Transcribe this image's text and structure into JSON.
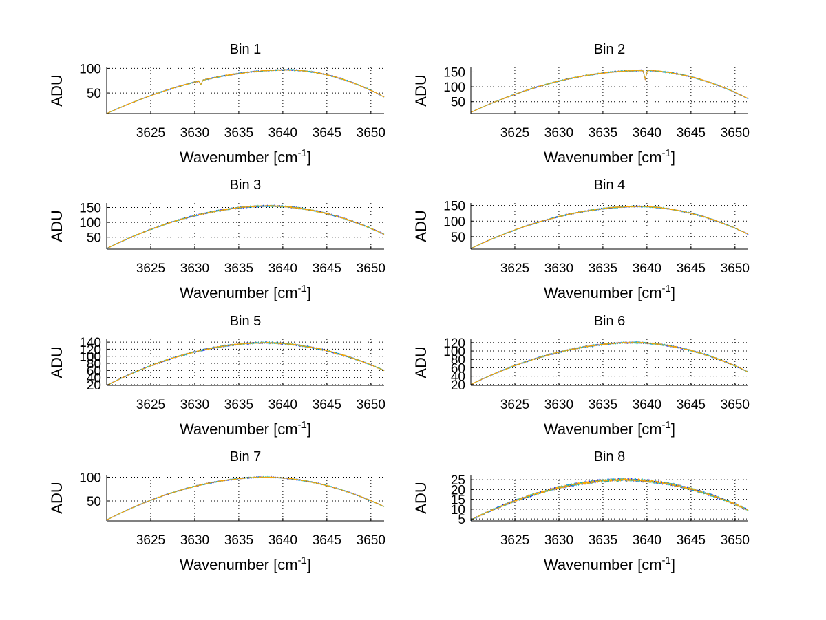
{
  "figure": {
    "background": "#ffffff"
  },
  "colors": {
    "primary": "#0000ff",
    "secondary": "#00bfbf",
    "overlay": "#ffa500",
    "grid": "#000000"
  },
  "chart_data": [
    {
      "type": "line",
      "title": "Bin 1",
      "xlabel": "Wavenumber [cm",
      "xlabel_sup": "-1",
      "xlabel_suffix": "]",
      "ylabel": "ADU",
      "xlim": [
        3620,
        3651.5
      ],
      "ylim": [
        8,
        102
      ],
      "xticks": [
        3625,
        3630,
        3635,
        3640,
        3645,
        3650
      ],
      "yticks": [
        50,
        100
      ],
      "ytick_labels": [
        "50",
        "100"
      ],
      "x_start": 3620,
      "x_end": 3651.5,
      "series": [
        {
          "name": "spectrum",
          "color": "#ffa500",
          "shape": {
            "peak": 97,
            "center": 3640.5,
            "edge_left": 8,
            "edge_right": 42
          },
          "noise": 1.2
        }
      ],
      "dips": [
        {
          "x": 3630.7,
          "depth": 8
        }
      ]
    },
    {
      "type": "line",
      "title": "Bin 2",
      "xlabel": "Wavenumber [cm",
      "xlabel_sup": "-1",
      "xlabel_suffix": "]",
      "ylabel": "ADU",
      "xlim": [
        3620,
        3651.5
      ],
      "ylim": [
        10,
        165
      ],
      "xticks": [
        3625,
        3630,
        3635,
        3640,
        3645,
        3650
      ],
      "yticks": [
        50,
        100,
        150
      ],
      "ytick_labels": [
        "50",
        "100",
        "150"
      ],
      "x_start": 3620,
      "x_end": 3651.5,
      "series": [
        {
          "name": "spectrum",
          "color": "#ffa500",
          "shape": {
            "peak": 155,
            "center": 3639.5,
            "edge_left": 14,
            "edge_right": 60
          },
          "noise": 2
        }
      ],
      "dips": [
        {
          "x": 3639.8,
          "depth": 30
        }
      ]
    },
    {
      "type": "line",
      "title": "Bin 3",
      "xlabel": "Wavenumber [cm",
      "xlabel_sup": "-1",
      "xlabel_suffix": "]",
      "ylabel": "ADU",
      "xlim": [
        3620,
        3651.5
      ],
      "ylim": [
        10,
        165
      ],
      "xticks": [
        3625,
        3630,
        3635,
        3640,
        3645,
        3650
      ],
      "yticks": [
        50,
        100,
        150
      ],
      "ytick_labels": [
        "50",
        "100",
        "150"
      ],
      "x_start": 3620,
      "x_end": 3651.5,
      "series": [
        {
          "name": "spectrum",
          "color": "#ffa500",
          "shape": {
            "peak": 155,
            "center": 3638.5,
            "edge_left": 12,
            "edge_right": 60
          },
          "noise": 2.5
        }
      ],
      "dips": []
    },
    {
      "type": "line",
      "title": "Bin 4",
      "xlabel": "Wavenumber [cm",
      "xlabel_sup": "-1",
      "xlabel_suffix": "]",
      "ylabel": "ADU",
      "xlim": [
        3620,
        3651.5
      ],
      "ylim": [
        10,
        158
      ],
      "xticks": [
        3625,
        3630,
        3635,
        3640,
        3645,
        3650
      ],
      "yticks": [
        50,
        100,
        150
      ],
      "ytick_labels": [
        "50",
        "100",
        "150"
      ],
      "x_start": 3620,
      "x_end": 3651.5,
      "series": [
        {
          "name": "spectrum",
          "color": "#ffa500",
          "shape": {
            "peak": 147,
            "center": 3639,
            "edge_left": 12,
            "edge_right": 58
          },
          "noise": 2
        }
      ],
      "dips": []
    },
    {
      "type": "line",
      "title": "Bin 5",
      "xlabel": "Wavenumber [cm",
      "xlabel_sup": "-1",
      "xlabel_suffix": "]",
      "ylabel": "ADU",
      "xlim": [
        3620,
        3651.5
      ],
      "ylim": [
        18,
        148
      ],
      "xticks": [
        3625,
        3630,
        3635,
        3640,
        3645,
        3650
      ],
      "yticks": [
        20,
        40,
        60,
        80,
        100,
        120,
        140
      ],
      "ytick_labels": [
        "20",
        "40",
        "60",
        "80",
        "100",
        "120",
        "140"
      ],
      "x_start": 3620,
      "x_end": 3651.5,
      "series": [
        {
          "name": "spectrum",
          "color": "#ffa500",
          "shape": {
            "peak": 138,
            "center": 3638,
            "edge_left": 18,
            "edge_right": 60
          },
          "noise": 2.2
        }
      ],
      "dips": []
    },
    {
      "type": "line",
      "title": "Bin 6",
      "xlabel": "Wavenumber [cm",
      "xlabel_sup": "-1",
      "xlabel_suffix": "]",
      "ylabel": "ADU",
      "xlim": [
        3620,
        3651.5
      ],
      "ylim": [
        18,
        128
      ],
      "xticks": [
        3625,
        3630,
        3635,
        3640,
        3645,
        3650
      ],
      "yticks": [
        20,
        40,
        60,
        80,
        100,
        120
      ],
      "ytick_labels": [
        "20",
        "40",
        "60",
        "80",
        "100",
        "120"
      ],
      "x_start": 3620,
      "x_end": 3651.5,
      "series": [
        {
          "name": "spectrum",
          "color": "#ffa500",
          "shape": {
            "peak": 120,
            "center": 3638.5,
            "edge_left": 20,
            "edge_right": 50
          },
          "noise": 1.8
        }
      ],
      "dips": []
    },
    {
      "type": "line",
      "title": "Bin 7",
      "xlabel": "Wavenumber [cm",
      "xlabel_sup": "-1",
      "xlabel_suffix": "]",
      "ylabel": "ADU",
      "xlim": [
        3620,
        3651.5
      ],
      "ylim": [
        8,
        105
      ],
      "xticks": [
        3625,
        3630,
        3635,
        3640,
        3645,
        3650
      ],
      "yticks": [
        50,
        100
      ],
      "ytick_labels": [
        "50",
        "100"
      ],
      "x_start": 3620,
      "x_end": 3651.5,
      "series": [
        {
          "name": "spectrum",
          "color": "#ffa500",
          "shape": {
            "peak": 100,
            "center": 3638,
            "edge_left": 10,
            "edge_right": 38
          },
          "noise": 1.2
        }
      ],
      "dips": []
    },
    {
      "type": "line",
      "title": "Bin 8",
      "xlabel": "Wavenumber [cm",
      "xlabel_sup": "-1",
      "xlabel_suffix": "]",
      "ylabel": "ADU",
      "xlim": [
        3620,
        3651.5
      ],
      "ylim": [
        4,
        27.5
      ],
      "xticks": [
        3625,
        3630,
        3635,
        3640,
        3645,
        3650
      ],
      "yticks": [
        5,
        10,
        15,
        20,
        25
      ],
      "ytick_labels": [
        "5",
        "10",
        "15",
        "20",
        "25"
      ],
      "x_start": 3620,
      "x_end": 3651.5,
      "series": [
        {
          "name": "spectrum",
          "color": "#ffa500",
          "shape": {
            "peak": 25,
            "center": 3637.5,
            "edge_left": 4.5,
            "edge_right": 9.5
          },
          "noise": 0.7
        }
      ],
      "dips": []
    }
  ]
}
